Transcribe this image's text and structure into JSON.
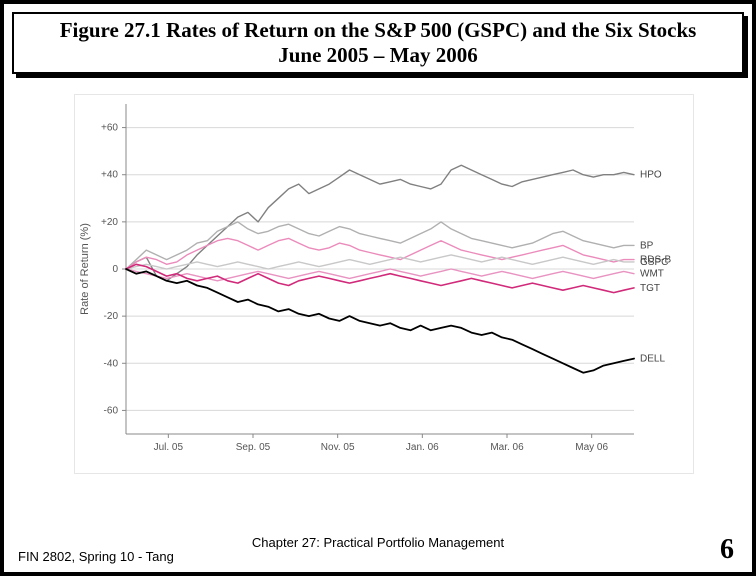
{
  "title": {
    "line1": "Figure 27.1 Rates of Return on the S&P 500 (GSPC) and the Six Stocks",
    "line2": "June 2005 – May 2006"
  },
  "footer": {
    "left": "FIN 2802, Spring 10 - Tang",
    "center": "Chapter 27: Practical Portfolio Management",
    "pageNumber": "6"
  },
  "chart": {
    "type": "line",
    "ylabel": "Rate of Return (%)",
    "label_fontsize": 11,
    "tick_fontsize": 10,
    "ylim": [
      -70,
      70
    ],
    "yticks": [
      -60,
      -40,
      -20,
      0,
      20,
      40,
      60
    ],
    "ytick_labels": [
      "-60",
      "-40",
      "-20",
      "0",
      "+20",
      "+40",
      "+60"
    ],
    "xticks": [
      "Jul. 05",
      "Sep. 05",
      "Nov. 05",
      "Jan. 06",
      "Mar. 06",
      "May 06"
    ],
    "grid_color": "#d8d8d8",
    "axis_color": "#888888",
    "background_color": "#ffffff",
    "panel_border_color": "#e6e6e6",
    "series": [
      {
        "name": "HPO",
        "color": "#808080",
        "width": 1.4,
        "end_y": 40,
        "data": [
          0,
          3,
          5,
          -3,
          -5,
          -2,
          1,
          6,
          10,
          14,
          18,
          22,
          24,
          20,
          26,
          30,
          34,
          36,
          32,
          34,
          36,
          39,
          42,
          40,
          38,
          36,
          37,
          38,
          36,
          35,
          34,
          36,
          42,
          44,
          42,
          40,
          38,
          36,
          35,
          37,
          38,
          39,
          40,
          41,
          42,
          40,
          39,
          40,
          40,
          41,
          40
        ]
      },
      {
        "name": "BP",
        "color": "#b0b0b0",
        "width": 1.4,
        "end_y": 10,
        "data": [
          0,
          4,
          8,
          6,
          4,
          6,
          8,
          11,
          12,
          16,
          18,
          20,
          17,
          15,
          16,
          18,
          19,
          17,
          15,
          14,
          16,
          18,
          17,
          15,
          14,
          13,
          12,
          11,
          13,
          15,
          17,
          20,
          17,
          15,
          13,
          12,
          11,
          10,
          9,
          10,
          11,
          13,
          15,
          16,
          14,
          12,
          11,
          10,
          9,
          10,
          10
        ]
      },
      {
        "name": "RDS-B",
        "color": "#eb8bbb",
        "width": 1.4,
        "end_y": 4,
        "data": [
          0,
          3,
          5,
          4,
          2,
          3,
          6,
          8,
          10,
          12,
          13,
          12,
          10,
          8,
          10,
          12,
          13,
          11,
          9,
          8,
          9,
          11,
          10,
          8,
          7,
          6,
          5,
          4,
          6,
          8,
          10,
          12,
          10,
          8,
          7,
          6,
          5,
          4,
          5,
          6,
          7,
          8,
          9,
          10,
          8,
          6,
          5,
          4,
          3,
          4,
          4
        ]
      },
      {
        "name": "GSPC",
        "color": "#c8c8c8",
        "width": 1.4,
        "end_y": 3,
        "data": [
          0,
          1,
          2,
          1,
          0,
          1,
          2,
          3,
          2,
          1,
          2,
          3,
          2,
          1,
          0,
          1,
          2,
          3,
          2,
          1,
          2,
          3,
          4,
          3,
          2,
          3,
          4,
          5,
          4,
          3,
          4,
          5,
          6,
          5,
          4,
          3,
          4,
          5,
          4,
          3,
          2,
          3,
          4,
          5,
          4,
          3,
          2,
          3,
          4,
          3,
          3
        ]
      },
      {
        "name": "WMT",
        "color": "#e893c1",
        "width": 1.4,
        "end_y": -2,
        "data": [
          0,
          -1,
          -2,
          -3,
          -4,
          -3,
          -2,
          -3,
          -4,
          -5,
          -4,
          -3,
          -2,
          -1,
          -2,
          -3,
          -4,
          -3,
          -2,
          -1,
          -2,
          -3,
          -4,
          -3,
          -2,
          -1,
          0,
          -1,
          -2,
          -3,
          -2,
          -1,
          0,
          -1,
          -2,
          -3,
          -2,
          -1,
          -2,
          -3,
          -4,
          -3,
          -2,
          -1,
          -2,
          -3,
          -4,
          -3,
          -2,
          -1,
          -2
        ]
      },
      {
        "name": "TGT",
        "color": "#d12a7a",
        "width": 1.6,
        "end_y": -8,
        "data": [
          0,
          2,
          1,
          -1,
          -3,
          -2,
          -4,
          -5,
          -4,
          -3,
          -5,
          -6,
          -4,
          -2,
          -4,
          -6,
          -7,
          -5,
          -4,
          -3,
          -4,
          -5,
          -6,
          -5,
          -4,
          -3,
          -2,
          -3,
          -4,
          -5,
          -6,
          -7,
          -6,
          -5,
          -4,
          -5,
          -6,
          -7,
          -8,
          -7,
          -6,
          -7,
          -8,
          -9,
          -8,
          -7,
          -8,
          -9,
          -10,
          -9,
          -8
        ]
      },
      {
        "name": "DELL",
        "color": "#000000",
        "width": 1.8,
        "end_y": -38,
        "data": [
          0,
          -2,
          -1,
          -3,
          -5,
          -6,
          -5,
          -7,
          -8,
          -10,
          -12,
          -14,
          -13,
          -15,
          -16,
          -18,
          -17,
          -19,
          -20,
          -19,
          -21,
          -22,
          -20,
          -22,
          -23,
          -24,
          -23,
          -25,
          -26,
          -24,
          -26,
          -25,
          -24,
          -25,
          -27,
          -28,
          -27,
          -29,
          -30,
          -32,
          -34,
          -36,
          -38,
          -40,
          -42,
          -44,
          -43,
          -41,
          -40,
          -39,
          -38
        ]
      }
    ],
    "legend_labels": [
      "HPO",
      "BP",
      "RDS-B",
      "GSPC",
      "WMT",
      "TGT",
      "DELL"
    ]
  }
}
